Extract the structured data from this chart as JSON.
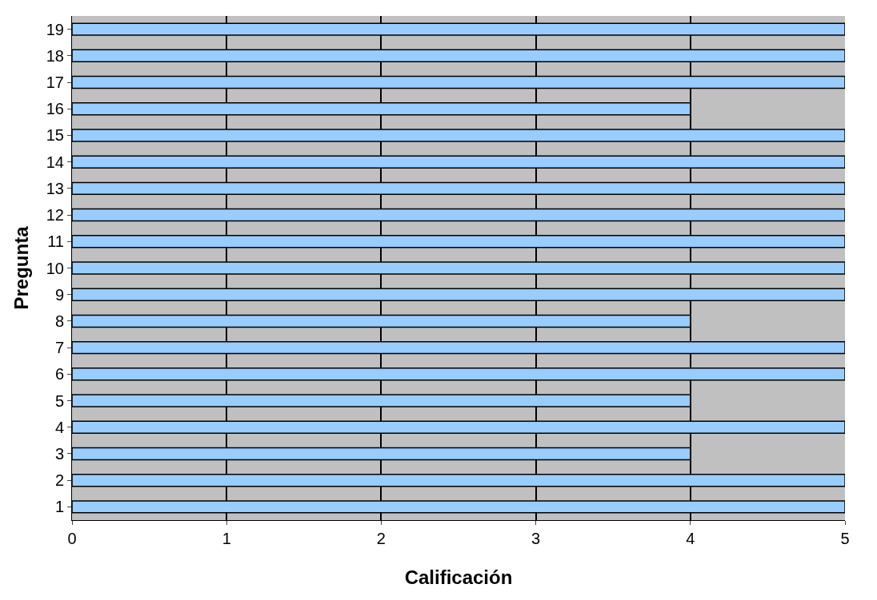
{
  "chart_data": {
    "type": "bar",
    "orientation": "horizontal",
    "xlabel": "Calificación",
    "ylabel": "Pregunta",
    "categories": [
      "19",
      "18",
      "17",
      "16",
      "15",
      "14",
      "13",
      "12",
      "11",
      "10",
      "9",
      "8",
      "7",
      "6",
      "5",
      "4",
      "3",
      "2",
      "1"
    ],
    "values": [
      5,
      5,
      5,
      4,
      5,
      5,
      5,
      5,
      5,
      5,
      5,
      4,
      5,
      5,
      4,
      5,
      4,
      5,
      5
    ],
    "color": "#99ccff",
    "xlim": [
      0,
      5
    ],
    "xticks": [
      0,
      1,
      2,
      3,
      4,
      5
    ],
    "grid": "x"
  }
}
